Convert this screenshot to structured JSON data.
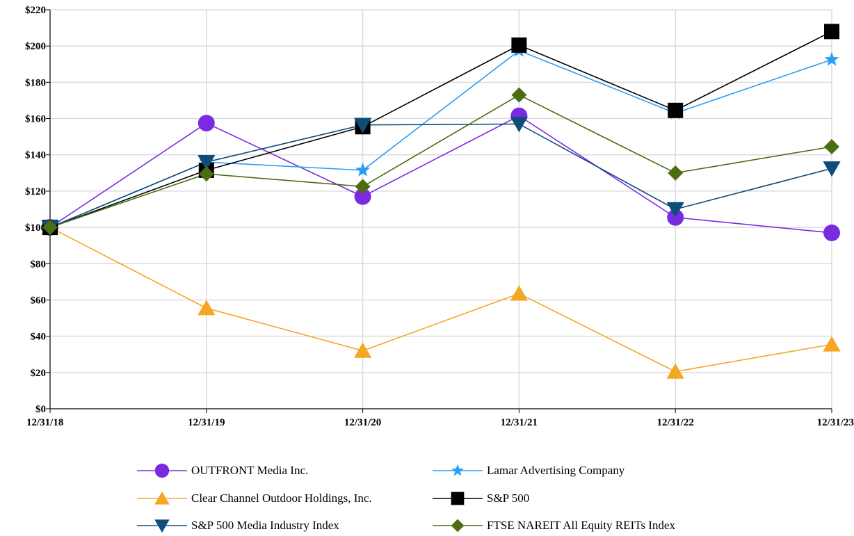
{
  "chart_data": {
    "type": "line",
    "x": [
      "12/31/18",
      "12/31/19",
      "12/31/20",
      "12/31/21",
      "12/31/22",
      "12/31/23"
    ],
    "ylim": [
      0,
      220
    ],
    "yticks": [
      0,
      20,
      40,
      60,
      80,
      100,
      120,
      140,
      160,
      180,
      200,
      220
    ],
    "ytick_labels": [
      "$0",
      "$20",
      "$40",
      "$60",
      "$80",
      "$100",
      "$120",
      "$140",
      "$160",
      "$180",
      "$200",
      "$220"
    ],
    "grid": true,
    "legend_position": "bottom",
    "series": [
      {
        "name": "OUTFRONT Media Inc.",
        "color": "#7a2be2",
        "marker": "circle",
        "values": [
          100,
          157.5,
          117,
          161.5,
          105.5,
          97
        ]
      },
      {
        "name": "Lamar Advertising Company",
        "color": "#2a9df4",
        "marker": "star",
        "values": [
          100,
          136,
          131.5,
          197.5,
          163,
          192.5
        ]
      },
      {
        "name": "Clear Channel Outdoor Holdings, Inc.",
        "color": "#f5a623",
        "marker": "triangle-up",
        "values": [
          100,
          55.5,
          32,
          63.5,
          20.5,
          35.5
        ]
      },
      {
        "name": "S&P 500",
        "color": "#000000",
        "marker": "square",
        "values": [
          100,
          131.5,
          155.5,
          200.5,
          164.5,
          208
        ]
      },
      {
        "name": "S&P 500 Media Industry Index",
        "color": "#0e4d7a",
        "marker": "triangle-down",
        "values": [
          100,
          136,
          156.5,
          157,
          110,
          132.5
        ]
      },
      {
        "name": "FTSE NAREIT All Equity REITs Index",
        "color": "#4a6e10",
        "marker": "diamond",
        "values": [
          100,
          129.5,
          122.5,
          173,
          130,
          144.5
        ]
      }
    ]
  }
}
